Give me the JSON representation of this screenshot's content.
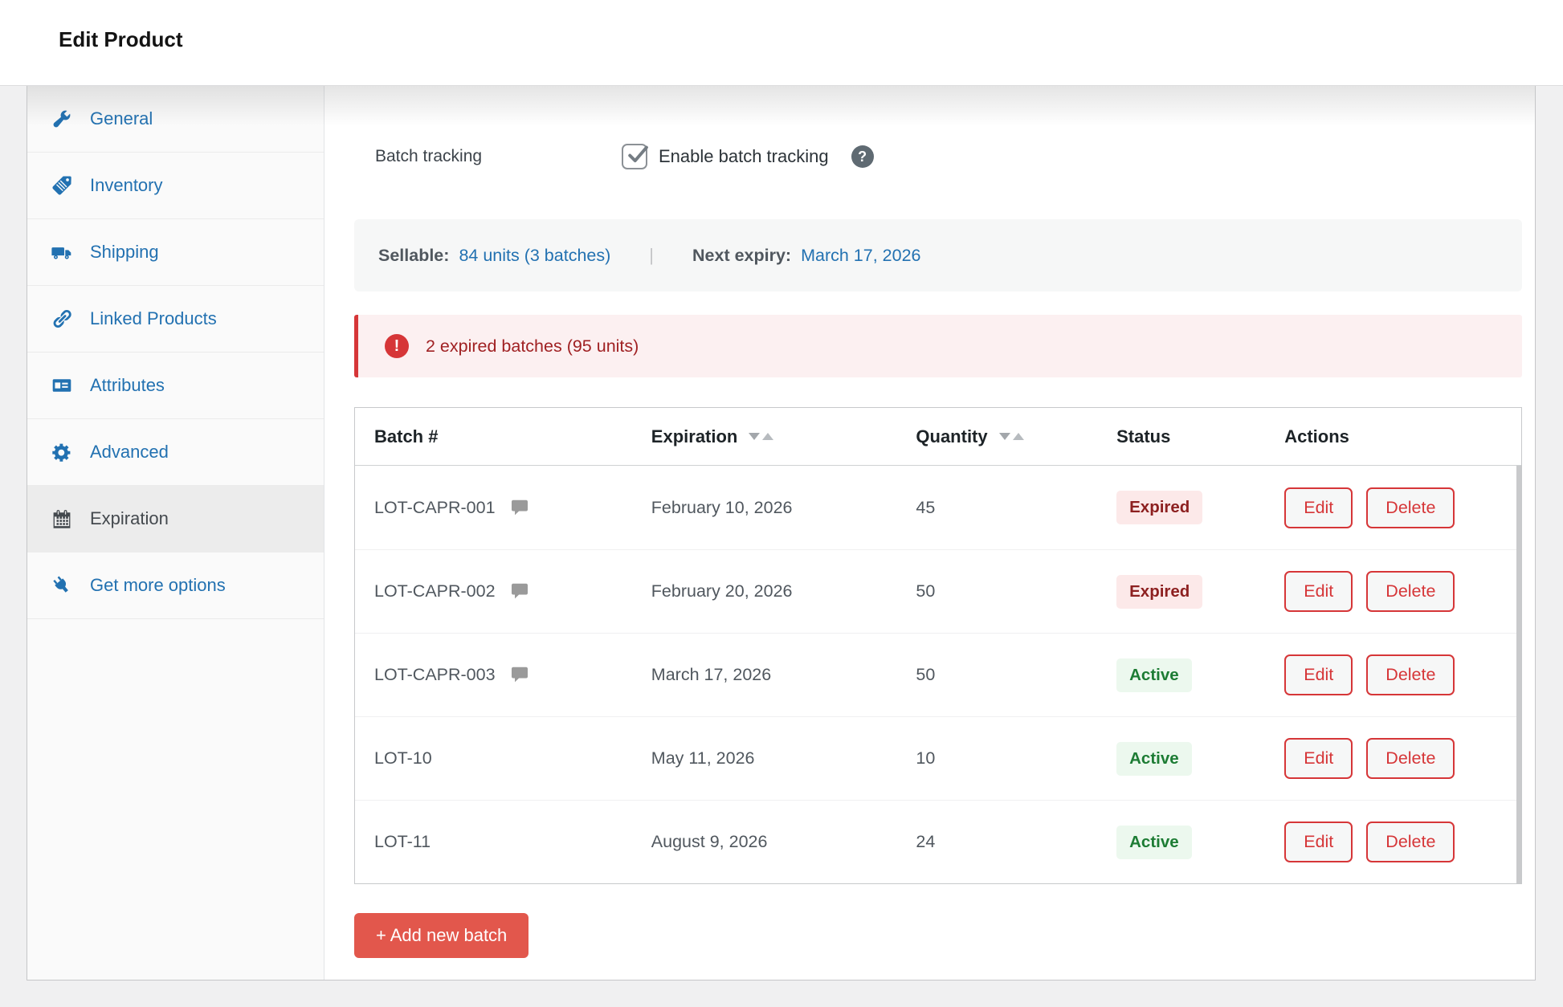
{
  "page": {
    "title": "Edit Product"
  },
  "sidebar": {
    "items": [
      {
        "label": "General",
        "icon": "wrench-icon",
        "active": false
      },
      {
        "label": "Inventory",
        "icon": "tag-icon",
        "active": false
      },
      {
        "label": "Shipping",
        "icon": "truck-icon",
        "active": false
      },
      {
        "label": "Linked Products",
        "icon": "link-icon",
        "active": false
      },
      {
        "label": "Attributes",
        "icon": "card-icon",
        "active": false
      },
      {
        "label": "Advanced",
        "icon": "gear-icon",
        "active": false
      },
      {
        "label": "Expiration",
        "icon": "calendar-icon",
        "active": true
      },
      {
        "label": "Get more options",
        "icon": "plug-icon",
        "active": false
      }
    ]
  },
  "batch_tracking": {
    "label": "Batch tracking",
    "checkbox_label": "Enable batch tracking",
    "checked": true,
    "help_glyph": "?"
  },
  "summary": {
    "sellable_label": "Sellable:",
    "sellable_value": "84 units (3 batches)",
    "divider": "|",
    "next_expiry_label": "Next expiry:",
    "next_expiry_value": "March 17, 2026"
  },
  "alert": {
    "icon_glyph": "!",
    "text": "2 expired batches (95 units)"
  },
  "table": {
    "columns": [
      {
        "label": "Batch #",
        "sortable": false
      },
      {
        "label": "Expiration",
        "sortable": true
      },
      {
        "label": "Quantity",
        "sortable": true
      },
      {
        "label": "Status",
        "sortable": false
      },
      {
        "label": "Actions",
        "sortable": false
      }
    ],
    "rows": [
      {
        "batch": "LOT-CAPR-001",
        "has_note": true,
        "expiration": "February 10, 2026",
        "quantity": "45",
        "status": "Expired"
      },
      {
        "batch": "LOT-CAPR-002",
        "has_note": true,
        "expiration": "February 20, 2026",
        "quantity": "50",
        "status": "Expired"
      },
      {
        "batch": "LOT-CAPR-003",
        "has_note": true,
        "expiration": "March 17, 2026",
        "quantity": "50",
        "status": "Active"
      },
      {
        "batch": "LOT-10",
        "has_note": false,
        "expiration": "May 11, 2026",
        "quantity": "10",
        "status": "Active"
      },
      {
        "batch": "LOT-11",
        "has_note": false,
        "expiration": "August 9, 2026",
        "quantity": "24",
        "status": "Active"
      }
    ],
    "actions": {
      "edit_label": "Edit",
      "delete_label": "Delete"
    }
  },
  "add_button": {
    "label": "+ Add new batch"
  },
  "colors": {
    "accent_blue": "#2271b1",
    "danger_red": "#d63638",
    "add_button_red": "#e2574c",
    "alert_bg": "#fcf0f1",
    "alert_text": "#a02123",
    "expired_badge_bg": "#fce9e9",
    "expired_badge_text": "#8d2020",
    "active_badge_bg": "#ecf8ee",
    "active_badge_text": "#1d7c34",
    "sidebar_bg": "#fafafa",
    "page_bg": "#f0f0f1"
  }
}
